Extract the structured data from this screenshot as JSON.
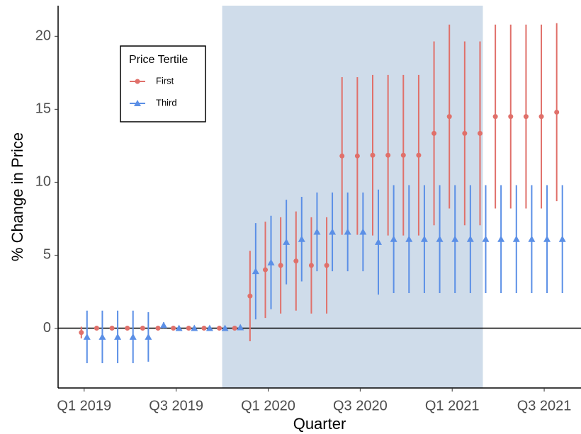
{
  "chart_data": {
    "type": "errorbar",
    "x_label": "Quarter",
    "y_label": "% Change in Price",
    "legend_title": "Price Tertile",
    "legend_position": "top-left",
    "highlight_x": [
      9,
      26
    ],
    "highlight_color": "#cfdcea",
    "x": [
      0,
      1,
      2,
      3,
      4,
      5,
      6,
      7,
      8,
      9,
      10,
      11,
      12,
      13,
      14,
      15,
      16,
      17,
      18,
      19,
      20,
      21,
      22,
      23,
      24,
      25,
      26,
      27,
      28,
      29,
      30,
      31
    ],
    "xlim": [
      -1.7,
      32.4
    ],
    "xticks": [
      {
        "value": 0,
        "label": "Q1 2019"
      },
      {
        "value": 6,
        "label": "Q3 2019"
      },
      {
        "value": 12,
        "label": "Q1 2020"
      },
      {
        "value": 18,
        "label": "Q3 2020"
      },
      {
        "value": 24,
        "label": "Q1 2021"
      },
      {
        "value": 30,
        "label": "Q3 2021"
      }
    ],
    "ylim": [
      -4.1,
      22.1
    ],
    "yticks": [
      0,
      5,
      10,
      15,
      20
    ],
    "zero_line": true,
    "grid": false,
    "series": [
      {
        "name": "First",
        "color": "#e0706a",
        "marker": "circle",
        "values": [
          -0.3,
          0,
          0,
          0,
          0,
          0,
          0,
          0,
          0,
          0,
          0,
          2.2,
          4.0,
          4.3,
          4.6,
          4.3,
          4.3,
          11.8,
          11.8,
          11.85,
          11.85,
          11.85,
          11.85,
          13.35,
          14.5,
          13.35,
          13.35,
          14.5,
          14.5,
          14.5,
          14.5,
          14.8
        ],
        "errors": [
          0.4,
          0,
          0,
          0,
          0,
          0,
          0,
          0,
          0,
          0,
          0,
          3.1,
          3.3,
          3.3,
          3.4,
          3.3,
          3.3,
          5.4,
          5.4,
          5.5,
          5.5,
          5.5,
          5.5,
          6.3,
          6.3,
          6.3,
          6.3,
          6.3,
          6.3,
          6.3,
          6.3,
          6.1
        ]
      },
      {
        "name": "Third",
        "color": "#5b8fe6",
        "marker": "triangle",
        "values": [
          -0.6,
          -0.6,
          -0.6,
          -0.6,
          -0.6,
          0.2,
          0,
          0,
          0,
          0,
          0.05,
          3.9,
          4.5,
          5.9,
          6.1,
          6.6,
          6.6,
          6.6,
          6.6,
          5.9,
          6.1,
          6.1,
          6.1,
          6.1,
          6.1,
          6.1,
          6.1,
          6.1,
          6.1,
          6.1,
          6.1,
          6.1
        ],
        "errors": [
          1.8,
          1.8,
          1.8,
          1.8,
          1.7,
          0.2,
          0,
          0,
          0,
          0,
          0,
          3.3,
          3.2,
          2.9,
          2.9,
          2.7,
          2.7,
          2.7,
          2.7,
          3.6,
          3.7,
          3.7,
          3.7,
          3.7,
          3.7,
          3.7,
          3.7,
          3.7,
          3.7,
          3.7,
          3.7,
          3.7
        ]
      }
    ]
  }
}
